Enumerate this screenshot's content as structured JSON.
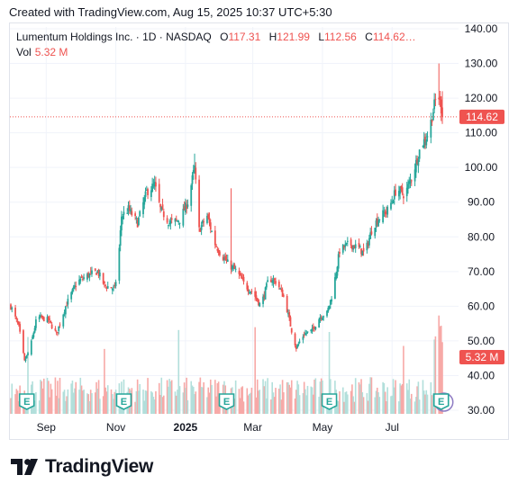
{
  "header": {
    "text": "Created with TradingView.com, Aug 15, 2025 10:37 UTC+5:30"
  },
  "legend": {
    "symbol": "Lumentum Holdings Inc. · 1D · NASDAQ",
    "o_label": "O",
    "o_value": "117.31",
    "h_label": "H",
    "h_value": "121.99",
    "l_label": "L",
    "l_value": "112.56",
    "c_label": "C",
    "c_value": "114.62…",
    "vol_label": "Vol",
    "vol_value": "5.32 M"
  },
  "brand": {
    "name": "TradingView"
  },
  "colors": {
    "up": "#26a69a",
    "down": "#ef5350",
    "up_vol": "#b2dfdb",
    "down_vol": "#f7a9a7",
    "grid": "#f0f3fa",
    "axis_text": "#131722",
    "price_line": "#ef5350",
    "earnings_icon": "#26a69a"
  },
  "chart_data": {
    "type": "candlestick",
    "title": "Lumentum Holdings Inc. · 1D · NASDAQ",
    "y_axis": {
      "min": 30,
      "max": 140,
      "ticks": [
        "140.00",
        "130.00",
        "120.00",
        "110.00",
        "100.00",
        "90.00",
        "80.00",
        "70.00",
        "60.00",
        "50.00",
        "40.00",
        "30.00"
      ]
    },
    "x_axis": {
      "ticks": [
        "Sep",
        "Nov",
        "2025",
        "Mar",
        "May",
        "Jul"
      ]
    },
    "last_price": {
      "value": 114.62,
      "label": "114.62"
    },
    "volume_label": "5.32 M",
    "earnings_markers": [
      "E",
      "E",
      "E",
      "E",
      "E"
    ],
    "close_anchors": [
      [
        "2024-08-01",
        60
      ],
      [
        "2024-08-08",
        54
      ],
      [
        "2024-08-13",
        44
      ],
      [
        "2024-08-18",
        48
      ],
      [
        "2024-08-24",
        57
      ],
      [
        "2024-09-03",
        56
      ],
      [
        "2024-09-10",
        52
      ],
      [
        "2024-09-18",
        60
      ],
      [
        "2024-09-28",
        67
      ],
      [
        "2024-10-08",
        69
      ],
      [
        "2024-10-16",
        70
      ],
      [
        "2024-10-22",
        66
      ],
      [
        "2024-10-31",
        65
      ],
      [
        "2024-11-03",
        72
      ],
      [
        "2024-11-06",
        86
      ],
      [
        "2024-11-12",
        88
      ],
      [
        "2024-11-20",
        84
      ],
      [
        "2024-11-28",
        93
      ],
      [
        "2024-12-05",
        95
      ],
      [
        "2024-12-10",
        88
      ],
      [
        "2024-12-18",
        84
      ],
      [
        "2024-12-27",
        85
      ],
      [
        "2025-01-03",
        90
      ],
      [
        "2025-01-09",
        100
      ],
      [
        "2025-01-13",
        82
      ],
      [
        "2025-01-20",
        86
      ],
      [
        "2025-01-27",
        78
      ],
      [
        "2025-02-01",
        75
      ],
      [
        "2025-02-08",
        72
      ],
      [
        "2025-02-15",
        70
      ],
      [
        "2025-02-22",
        66
      ],
      [
        "2025-03-01",
        64
      ],
      [
        "2025-03-08",
        60
      ],
      [
        "2025-03-15",
        68
      ],
      [
        "2025-03-22",
        67
      ],
      [
        "2025-03-29",
        62
      ],
      [
        "2025-04-04",
        53
      ],
      [
        "2025-04-08",
        48
      ],
      [
        "2025-04-15",
        52
      ],
      [
        "2025-04-22",
        53
      ],
      [
        "2025-04-29",
        57
      ],
      [
        "2025-05-05",
        58
      ],
      [
        "2025-05-10",
        64
      ],
      [
        "2025-05-16",
        76
      ],
      [
        "2025-05-24",
        78
      ],
      [
        "2025-06-01",
        77
      ],
      [
        "2025-06-07",
        75
      ],
      [
        "2025-06-14",
        83
      ],
      [
        "2025-06-21",
        86
      ],
      [
        "2025-06-28",
        88
      ],
      [
        "2025-07-05",
        94
      ],
      [
        "2025-07-12",
        92
      ],
      [
        "2025-07-19",
        98
      ],
      [
        "2025-07-26",
        106
      ],
      [
        "2025-08-02",
        110
      ],
      [
        "2025-08-07",
        118
      ],
      [
        "2025-08-10",
        122
      ],
      [
        "2025-08-13",
        117
      ],
      [
        "2025-08-14",
        114.62
      ]
    ]
  }
}
